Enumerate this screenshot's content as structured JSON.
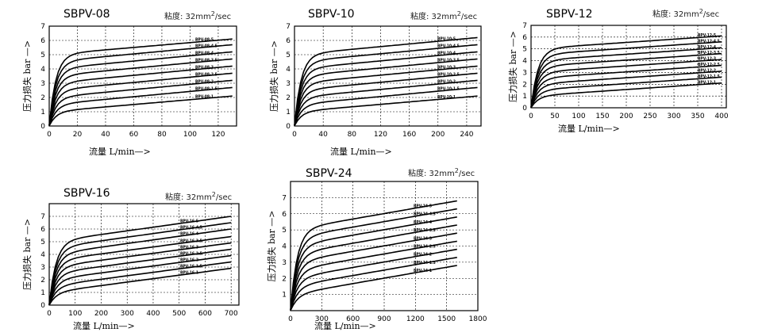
{
  "chart_data": [
    {
      "type": "line",
      "title": "SBPV-08",
      "viscosity": "粘度: 32mm",
      "viscosity_sup": "2",
      "viscosity_suffix": "/sec",
      "xlabel": "流量 L/min—>",
      "ylabel": "压力损失 bar —>",
      "xlim": [
        0,
        133
      ],
      "ylim": [
        0,
        7
      ],
      "xticks": [
        "0",
        "20",
        "40",
        "60",
        "80",
        "100",
        "120"
      ],
      "xtick_values": [
        0,
        20,
        40,
        60,
        80,
        100,
        120
      ],
      "yticks": [
        "0",
        "1",
        "2",
        "3",
        "4",
        "5",
        "6",
        "7"
      ],
      "series": [
        {
          "name": "BPV-08-5",
          "p0": 5.0,
          "pend": 6.1
        },
        {
          "name": "BPV-08-4.5",
          "p0": 4.5,
          "pend": 5.7
        },
        {
          "name": "BPV-08-4",
          "p0": 4.0,
          "pend": 5.2
        },
        {
          "name": "BPV-08-3.5",
          "p0": 3.5,
          "pend": 4.7
        },
        {
          "name": "BPV-08-3",
          "p0": 3.0,
          "pend": 4.2
        },
        {
          "name": "BPV-08-2.5",
          "p0": 2.5,
          "pend": 3.7
        },
        {
          "name": "BPV-08-2",
          "p0": 2.0,
          "pend": 3.2
        },
        {
          "name": "BPV-08-1.5",
          "p0": 1.5,
          "pend": 2.7
        },
        {
          "name": "BPV-08-1",
          "p0": 1.0,
          "pend": 2.1
        }
      ],
      "x_end": 130
    },
    {
      "type": "line",
      "title": "SBPV-10",
      "viscosity": "粘度: 32mm",
      "viscosity_sup": "2",
      "viscosity_suffix": "/sec",
      "xlabel": "流量 L/min—>",
      "ylabel": "压力损失 bar —>",
      "xlim": [
        0,
        260
      ],
      "ylim": [
        0,
        7
      ],
      "xticks": [
        "0",
        "40",
        "80",
        "120",
        "160",
        "200",
        "240"
      ],
      "xtick_values": [
        0,
        40,
        80,
        120,
        160,
        200,
        240
      ],
      "yticks": [
        "0",
        "1",
        "2",
        "3",
        "4",
        "5",
        "6",
        "7"
      ],
      "series": [
        {
          "name": "BPV-10-5",
          "p0": 5.0,
          "pend": 6.2
        },
        {
          "name": "BPV-10-4.5",
          "p0": 4.5,
          "pend": 5.7
        },
        {
          "name": "BPV-10-4",
          "p0": 4.0,
          "pend": 5.2
        },
        {
          "name": "BPV-10-3.5",
          "p0": 3.5,
          "pend": 4.7
        },
        {
          "name": "BPV-10-3",
          "p0": 3.0,
          "pend": 4.2
        },
        {
          "name": "BPV-10-2.5",
          "p0": 2.5,
          "pend": 3.7
        },
        {
          "name": "BPV-10-2",
          "p0": 2.0,
          "pend": 3.2
        },
        {
          "name": "BPV-10-1.5",
          "p0": 1.5,
          "pend": 2.7
        },
        {
          "name": "BPV-10-1",
          "p0": 1.0,
          "pend": 2.1
        }
      ],
      "x_end": 255
    },
    {
      "type": "line",
      "title": "SBPV-12",
      "viscosity": "粘度: 32mm",
      "viscosity_sup": "2",
      "viscosity_suffix": "/sec",
      "xlabel": "流量 L/min—>",
      "ylabel": "压力损失 bar —>",
      "xlim": [
        0,
        410
      ],
      "ylim": [
        0,
        7
      ],
      "xticks": [
        "0",
        "50",
        "100",
        "150",
        "200",
        "250",
        "300",
        "350",
        "400"
      ],
      "xtick_values": [
        0,
        50,
        100,
        150,
        200,
        250,
        300,
        350,
        400
      ],
      "yticks": [
        "0",
        "1",
        "2",
        "3",
        "4",
        "5",
        "6",
        "7"
      ],
      "series": [
        {
          "name": "BPV-12-5",
          "p0": 5.0,
          "pend": 6.1
        },
        {
          "name": "BPV-12-4.5",
          "p0": 4.5,
          "pend": 5.6
        },
        {
          "name": "BPV-12-4",
          "p0": 4.0,
          "pend": 5.1
        },
        {
          "name": "BPV-12-3.5",
          "p0": 3.5,
          "pend": 4.6
        },
        {
          "name": "BPV-12-3",
          "p0": 3.0,
          "pend": 4.1
        },
        {
          "name": "BPV-12-2.5",
          "p0": 2.5,
          "pend": 3.6
        },
        {
          "name": "BPV-12-2",
          "p0": 2.0,
          "pend": 3.1
        },
        {
          "name": "BPV-12-1.5",
          "p0": 1.5,
          "pend": 2.6
        },
        {
          "name": "BPV-12-1",
          "p0": 1.0,
          "pend": 2.1
        }
      ],
      "x_end": 400
    },
    {
      "type": "line",
      "title": "SBPV-16",
      "viscosity": "粘度: 32mm",
      "viscosity_sup": "2",
      "viscosity_suffix": "/sec",
      "xlabel": "流量 L/min—>",
      "ylabel": "压力损失 bar —>",
      "xlim": [
        0,
        730
      ],
      "ylim": [
        0,
        8
      ],
      "xticks": [
        "0",
        "100",
        "200",
        "300",
        "400",
        "500",
        "600",
        "700"
      ],
      "xtick_values": [
        0,
        100,
        200,
        300,
        400,
        500,
        600,
        700
      ],
      "yticks": [
        "0",
        "1",
        "2",
        "3",
        "4",
        "5",
        "6",
        "7"
      ],
      "series": [
        {
          "name": "BPV-16-5",
          "p0": 5.0,
          "pend": 7.0
        },
        {
          "name": "BPV-16-4.5",
          "p0": 4.5,
          "pend": 6.5
        },
        {
          "name": "BPV-16-4",
          "p0": 4.0,
          "pend": 6.0
        },
        {
          "name": "BPV-16-3.5",
          "p0": 3.5,
          "pend": 5.4
        },
        {
          "name": "BPV-16-3",
          "p0": 3.0,
          "pend": 4.9
        },
        {
          "name": "BPV-16-2.5",
          "p0": 2.5,
          "pend": 4.4
        },
        {
          "name": "BPV-16-2",
          "p0": 2.0,
          "pend": 3.9
        },
        {
          "name": "BPV-16-1.5",
          "p0": 1.5,
          "pend": 3.4
        },
        {
          "name": "BPV-16-1",
          "p0": 1.0,
          "pend": 2.9
        }
      ],
      "x_end": 700
    },
    {
      "type": "line",
      "title": "SBPV-24",
      "viscosity": "粘度: 32mm",
      "viscosity_sup": "2",
      "viscosity_suffix": "/sec",
      "xlabel": "流量 L/min—>",
      "ylabel": "压力损失 bar —>",
      "xlim": [
        0,
        1800
      ],
      "ylim": [
        0,
        8
      ],
      "xticks": [
        "0",
        "300",
        "600",
        "900",
        "1200",
        "1500",
        "1800"
      ],
      "xtick_values": [
        0,
        300,
        600,
        900,
        1200,
        1500,
        1800
      ],
      "yticks": [
        "1",
        "2",
        "3",
        "4",
        "5",
        "6",
        "7"
      ],
      "series": [
        {
          "name": "BPV-24-5",
          "p0": 5.0,
          "pend": 6.8
        },
        {
          "name": "BPV-24-4.5",
          "p0": 4.5,
          "pend": 6.3
        },
        {
          "name": "BPV-24-4",
          "p0": 4.0,
          "pend": 5.8
        },
        {
          "name": "BPV-24-3.5",
          "p0": 3.5,
          "pend": 5.3
        },
        {
          "name": "BPV-24-3",
          "p0": 3.0,
          "pend": 4.8
        },
        {
          "name": "BPV-24-2.5",
          "p0": 2.5,
          "pend": 4.3
        },
        {
          "name": "BPV-24-2",
          "p0": 2.0,
          "pend": 3.8
        },
        {
          "name": "BPV-24-1.5",
          "p0": 1.5,
          "pend": 3.3
        },
        {
          "name": "BPV-24-1",
          "p0": 1.0,
          "pend": 2.8
        }
      ],
      "x_end": 1600
    }
  ]
}
